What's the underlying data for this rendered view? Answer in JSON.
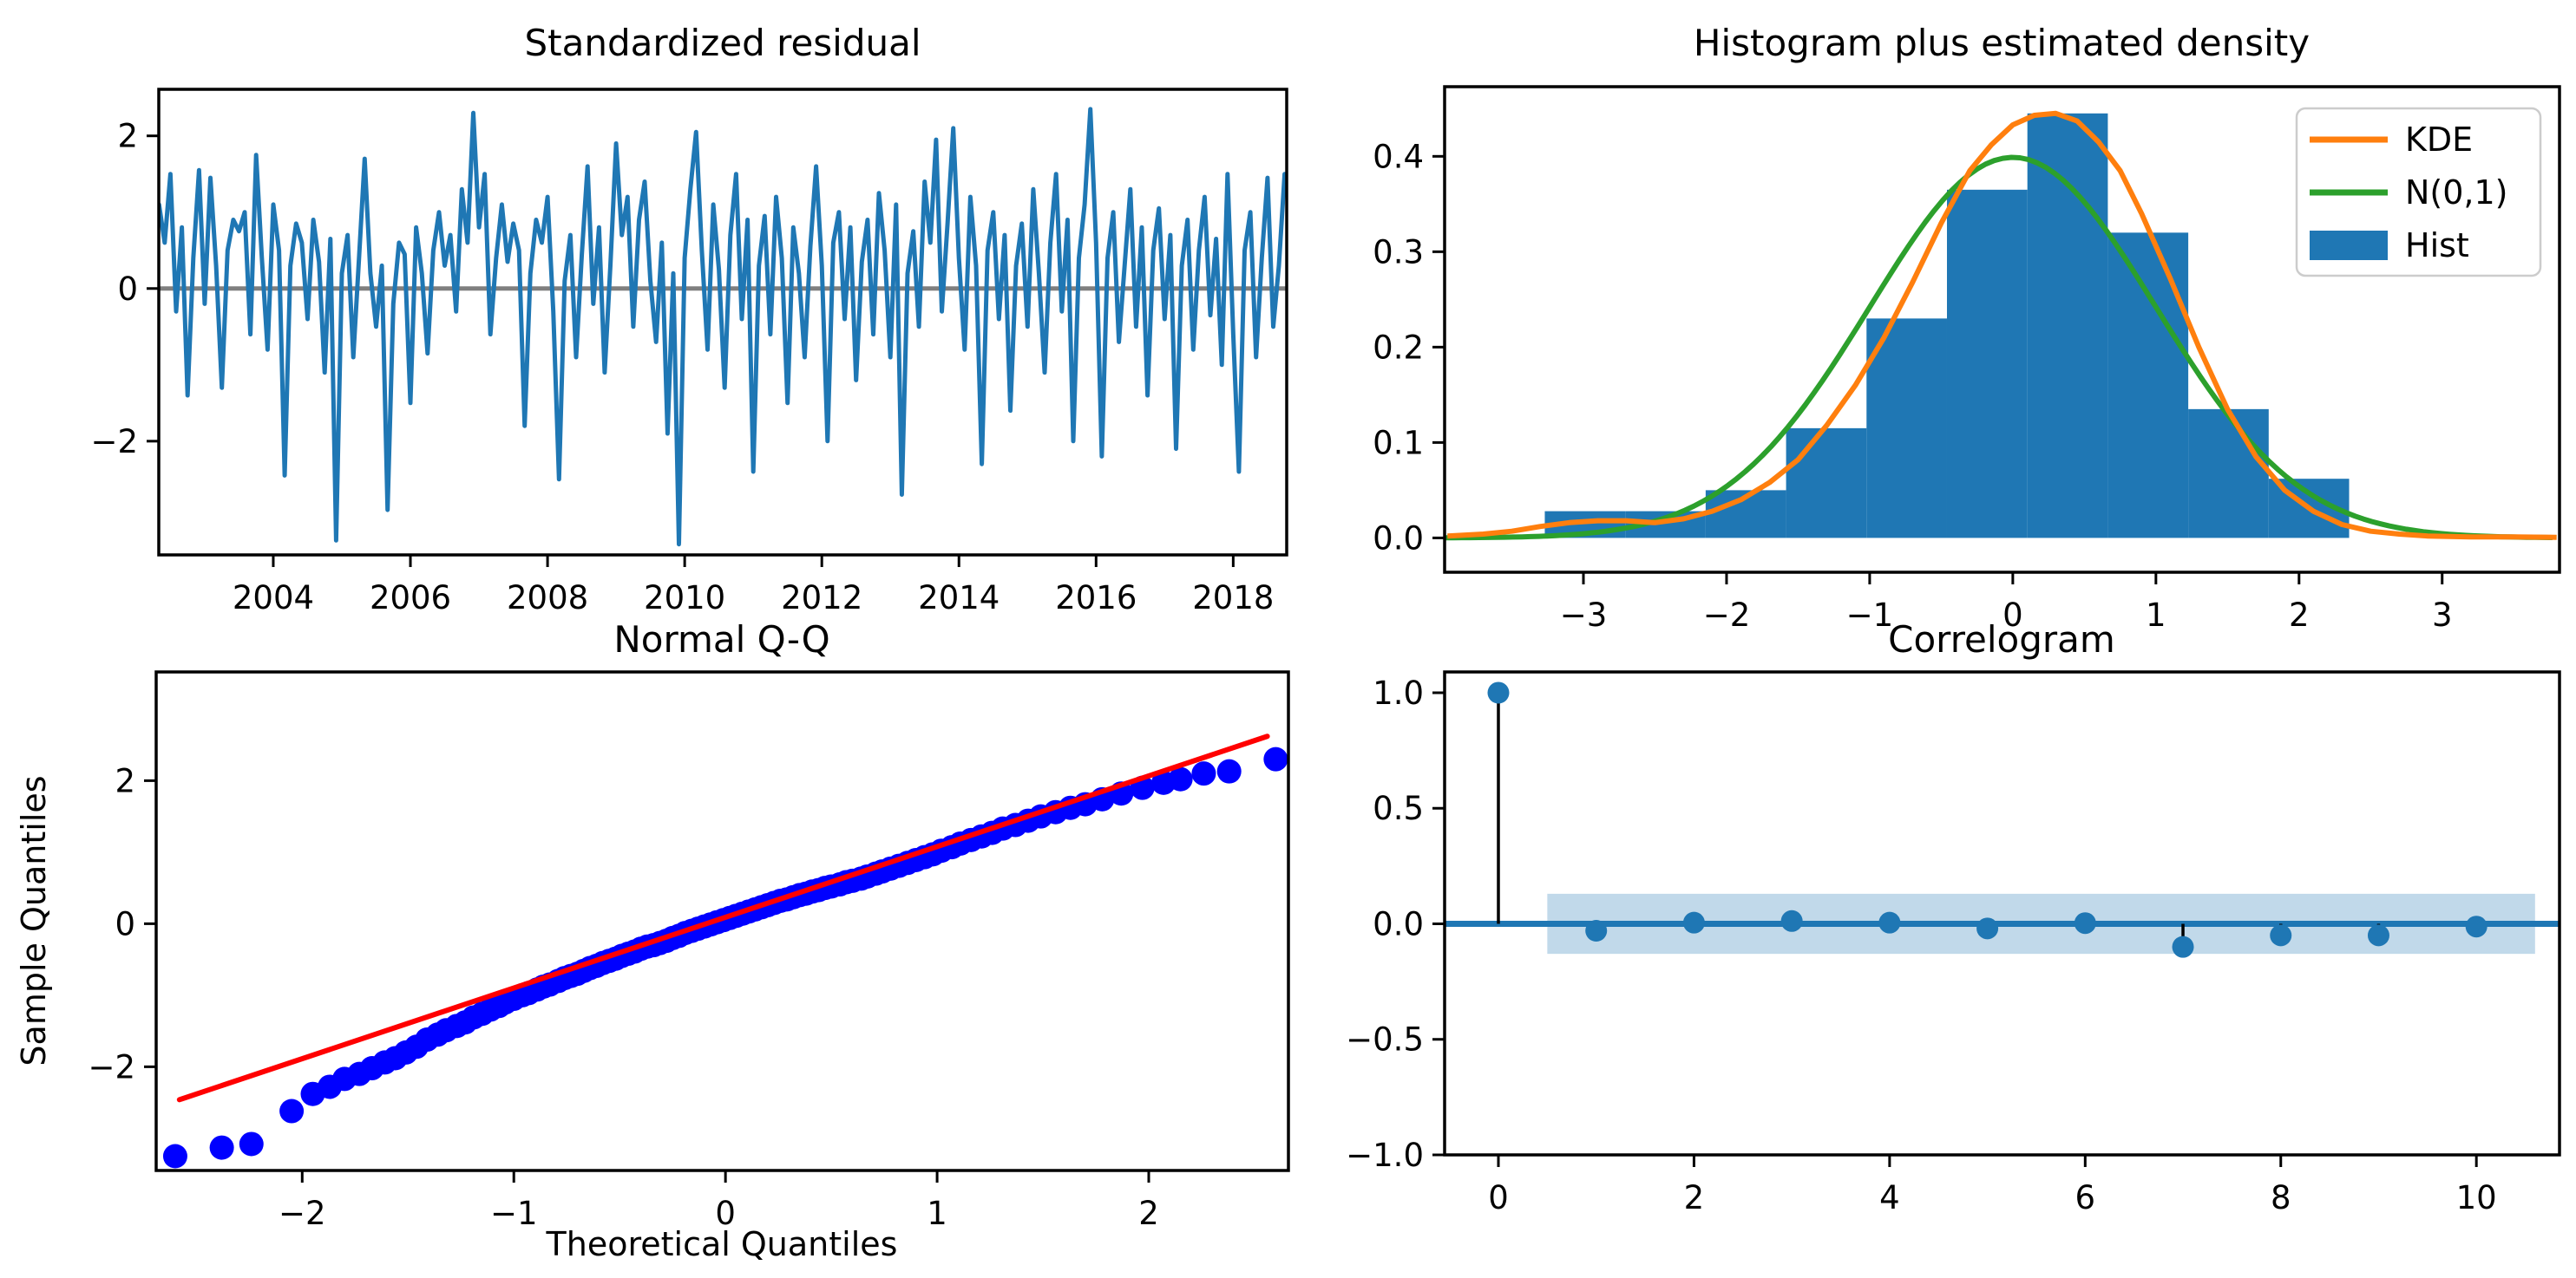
{
  "figure": {
    "background": "#ffffff",
    "description": "Model diagnostics 2x2 panel"
  },
  "chart_data": [
    {
      "id": "standardized-residual",
      "type": "line",
      "title": "Standardized residual",
      "x_start": 2002.3333,
      "x_step": 0.083333,
      "xlim": [
        2002.33,
        2018.78
      ],
      "ylim": [
        -3.49,
        2.61
      ],
      "x_ticks": [
        [
          2004,
          "2004"
        ],
        [
          2006,
          "2006"
        ],
        [
          2008,
          "2008"
        ],
        [
          2010,
          "2010"
        ],
        [
          2012,
          "2012"
        ],
        [
          2014,
          "2014"
        ],
        [
          2016,
          "2016"
        ],
        [
          2018,
          "2018"
        ]
      ],
      "y_ticks": [
        [
          -2,
          "−2"
        ],
        [
          0,
          "0"
        ],
        [
          2,
          "2"
        ]
      ],
      "line_color": "#1f77b4",
      "zero_line_color": "#7f7f7f",
      "values": [
        1.1,
        0.6,
        1.5,
        -0.3,
        0.8,
        -1.4,
        0.4,
        1.55,
        -0.2,
        1.45,
        0.3,
        -1.3,
        0.5,
        0.9,
        0.75,
        1.0,
        -0.6,
        1.75,
        0.4,
        -0.8,
        1.1,
        0.5,
        -2.45,
        0.3,
        0.85,
        0.6,
        -0.4,
        0.9,
        0.35,
        -1.1,
        0.65,
        -3.3,
        0.2,
        0.7,
        -0.9,
        0.4,
        1.7,
        0.2,
        -0.5,
        0.3,
        -2.9,
        -0.2,
        0.6,
        0.45,
        -1.5,
        0.8,
        0.2,
        -0.85,
        0.5,
        1.0,
        0.3,
        0.7,
        -0.3,
        1.3,
        0.6,
        2.3,
        0.8,
        1.5,
        -0.6,
        0.4,
        1.1,
        0.35,
        0.85,
        0.5,
        -1.8,
        0.2,
        0.9,
        0.6,
        1.2,
        -0.3,
        -2.5,
        0.1,
        0.7,
        -0.9,
        0.45,
        1.6,
        -0.2,
        0.8,
        -1.1,
        0.3,
        1.9,
        0.7,
        1.2,
        -0.5,
        0.9,
        1.4,
        0.1,
        -0.7,
        0.6,
        -1.9,
        0.2,
        -3.35,
        0.4,
        1.3,
        2.05,
        0.5,
        -0.8,
        1.1,
        0.25,
        -1.3,
        0.7,
        1.5,
        -0.4,
        0.9,
        -2.4,
        0.3,
        0.95,
        -0.6,
        1.2,
        0.4,
        -1.5,
        0.8,
        0.2,
        -0.9,
        0.55,
        1.6,
        0.3,
        -2.0,
        0.6,
        1.0,
        -0.4,
        0.8,
        -1.2,
        0.35,
        0.9,
        -0.6,
        1.25,
        0.5,
        -0.9,
        1.1,
        -2.7,
        0.2,
        0.75,
        -0.5,
        1.4,
        0.6,
        1.95,
        -0.3,
        0.85,
        2.1,
        0.4,
        -0.8,
        1.2,
        0.3,
        -2.3,
        0.5,
        1.0,
        -0.4,
        0.7,
        -1.6,
        0.3,
        0.85,
        -0.5,
        1.3,
        0.2,
        -1.1,
        0.6,
        1.5,
        -0.3,
        0.9,
        -2.0,
        0.4,
        1.1,
        2.35,
        0.6,
        -2.2,
        0.4,
        1.0,
        -0.7,
        0.3,
        1.3,
        -0.5,
        0.8,
        -1.4,
        0.5,
        1.05,
        -0.4,
        0.7,
        -2.1,
        0.3,
        0.9,
        -0.8,
        0.5,
        1.2,
        -0.35,
        0.65,
        -1.0,
        1.5,
        -0.6,
        -2.4,
        0.5,
        1.0,
        -0.9,
        0.4,
        1.45,
        -0.5,
        0.3,
        1.5
      ]
    },
    {
      "id": "histogram-density",
      "type": "histogram-density",
      "title": "Histogram plus estimated density",
      "xlim": [
        -3.97,
        3.82
      ],
      "ylim": [
        -0.036,
        0.473
      ],
      "x_ticks": [
        [
          -3,
          "−3"
        ],
        [
          -2,
          "−2"
        ],
        [
          -1,
          "−1"
        ],
        [
          0,
          "0"
        ],
        [
          1,
          "1"
        ],
        [
          2,
          "2"
        ],
        [
          3,
          "3"
        ]
      ],
      "y_ticks": [
        [
          0,
          "0.0"
        ],
        [
          0.1,
          "0.1"
        ],
        [
          0.2,
          "0.2"
        ],
        [
          0.3,
          "0.3"
        ],
        [
          0.4,
          "0.4"
        ]
      ],
      "hist": {
        "label": "Hist",
        "color": "#1f77b4",
        "bin_start": -3.27,
        "bin_width": 0.562,
        "heights": [
          0.028,
          0.028,
          0.05,
          0.115,
          0.23,
          0.365,
          0.445,
          0.32,
          0.135,
          0.062
        ]
      },
      "kde": {
        "label": "KDE",
        "color": "#ff7f0e",
        "points": [
          [
            -3.95,
            0.002
          ],
          [
            -3.7,
            0.004
          ],
          [
            -3.5,
            0.007
          ],
          [
            -3.3,
            0.012
          ],
          [
            -3.1,
            0.016
          ],
          [
            -2.9,
            0.018
          ],
          [
            -2.7,
            0.018
          ],
          [
            -2.5,
            0.016
          ],
          [
            -2.3,
            0.02
          ],
          [
            -2.1,
            0.028
          ],
          [
            -1.9,
            0.04
          ],
          [
            -1.7,
            0.058
          ],
          [
            -1.5,
            0.082
          ],
          [
            -1.3,
            0.118
          ],
          [
            -1.1,
            0.16
          ],
          [
            -0.9,
            0.21
          ],
          [
            -0.7,
            0.268
          ],
          [
            -0.5,
            0.33
          ],
          [
            -0.3,
            0.385
          ],
          [
            -0.15,
            0.412
          ],
          [
            0,
            0.433
          ],
          [
            0.15,
            0.443
          ],
          [
            0.3,
            0.445
          ],
          [
            0.45,
            0.437
          ],
          [
            0.6,
            0.415
          ],
          [
            0.75,
            0.385
          ],
          [
            0.9,
            0.34
          ],
          [
            1.1,
            0.272
          ],
          [
            1.3,
            0.2
          ],
          [
            1.5,
            0.135
          ],
          [
            1.7,
            0.085
          ],
          [
            1.9,
            0.05
          ],
          [
            2.1,
            0.028
          ],
          [
            2.3,
            0.014
          ],
          [
            2.5,
            0.007
          ],
          [
            2.7,
            0.004
          ],
          [
            2.9,
            0.002
          ],
          [
            3.2,
            0.001
          ],
          [
            3.5,
            0.001
          ],
          [
            3.8,
            0.0005
          ]
        ]
      },
      "normal": {
        "label": "N(0,1)",
        "color": "#2ca02c",
        "mean": 0,
        "sd": 1
      },
      "legend": [
        {
          "label": "KDE"
        },
        {
          "label": "N(0,1)"
        },
        {
          "label": "Hist"
        }
      ],
      "legend_position": "upper right"
    },
    {
      "id": "normal-qq",
      "type": "scatter",
      "title": "Normal Q-Q",
      "xlabel": "Theoretical Quantiles",
      "ylabel": "Sample Quantiles",
      "xlim": [
        -2.69,
        2.66
      ],
      "ylim": [
        -3.45,
        3.52
      ],
      "x_ticks": [
        [
          -2,
          "−2"
        ],
        [
          -1,
          "−1"
        ],
        [
          0,
          "0"
        ],
        [
          1,
          "1"
        ],
        [
          2,
          "2"
        ]
      ],
      "y_ticks": [
        [
          -2,
          "−2"
        ],
        [
          0,
          "0"
        ],
        [
          2,
          "2"
        ]
      ],
      "point_color": "#0000ff",
      "ref_line": {
        "color": "#ff0000",
        "x1": -2.58,
        "y1": -2.46,
        "x2": 2.56,
        "y2": 2.62
      },
      "points": [
        [
          -2.6,
          -3.25
        ],
        [
          -2.38,
          -3.13
        ],
        [
          -2.24,
          -3.08
        ],
        [
          -2.05,
          -2.62
        ],
        [
          -1.95,
          -2.38
        ],
        [
          -1.87,
          -2.28
        ],
        [
          -1.8,
          -2.17
        ],
        [
          -1.73,
          -2.1
        ],
        [
          -1.67,
          -2.02
        ],
        [
          -1.61,
          -1.94
        ],
        [
          -1.56,
          -1.88
        ],
        [
          -1.51,
          -1.8
        ],
        [
          -1.46,
          -1.72
        ],
        [
          -1.41,
          -1.62
        ],
        [
          -1.36,
          -1.55
        ],
        [
          -1.32,
          -1.49
        ],
        [
          -1.27,
          -1.43
        ],
        [
          -1.23,
          -1.38
        ],
        [
          -1.19,
          -1.31
        ],
        [
          -1.15,
          -1.26
        ],
        [
          -1.11,
          -1.2
        ],
        [
          -1.07,
          -1.15
        ],
        [
          -1.04,
          -1.1
        ],
        [
          -1.0,
          -1.05
        ],
        [
          -0.96,
          -1.0
        ],
        [
          -0.93,
          -0.97
        ],
        [
          -0.89,
          -0.92
        ],
        [
          -0.86,
          -0.88
        ],
        [
          -0.83,
          -0.85
        ],
        [
          -0.79,
          -0.8
        ],
        [
          -0.76,
          -0.76
        ],
        [
          -0.73,
          -0.73
        ],
        [
          -0.7,
          -0.7
        ],
        [
          -0.67,
          -0.66
        ],
        [
          -0.64,
          -0.62
        ],
        [
          -0.61,
          -0.59
        ],
        [
          -0.58,
          -0.55
        ],
        [
          -0.55,
          -0.52
        ],
        [
          -0.52,
          -0.49
        ],
        [
          -0.49,
          -0.45
        ],
        [
          -0.46,
          -0.42
        ],
        [
          -0.43,
          -0.39
        ],
        [
          -0.4,
          -0.35
        ],
        [
          -0.37,
          -0.32
        ],
        [
          -0.34,
          -0.3
        ],
        [
          -0.31,
          -0.27
        ],
        [
          -0.28,
          -0.24
        ],
        [
          -0.25,
          -0.2
        ],
        [
          -0.22,
          -0.17
        ],
        [
          -0.19,
          -0.13
        ],
        [
          -0.16,
          -0.1
        ],
        [
          -0.13,
          -0.07
        ],
        [
          -0.1,
          -0.04
        ],
        [
          -0.07,
          -0.01
        ],
        [
          -0.04,
          0.02
        ],
        [
          -0.01,
          0.05
        ],
        [
          0.02,
          0.08
        ],
        [
          0.05,
          0.11
        ],
        [
          0.08,
          0.14
        ],
        [
          0.11,
          0.17
        ],
        [
          0.14,
          0.2
        ],
        [
          0.17,
          0.23
        ],
        [
          0.2,
          0.26
        ],
        [
          0.23,
          0.29
        ],
        [
          0.26,
          0.32
        ],
        [
          0.29,
          0.34
        ],
        [
          0.32,
          0.37
        ],
        [
          0.35,
          0.4
        ],
        [
          0.38,
          0.42
        ],
        [
          0.41,
          0.45
        ],
        [
          0.44,
          0.47
        ],
        [
          0.47,
          0.5
        ],
        [
          0.5,
          0.52
        ],
        [
          0.54,
          0.55
        ],
        [
          0.57,
          0.58
        ],
        [
          0.6,
          0.6
        ],
        [
          0.64,
          0.63
        ],
        [
          0.67,
          0.66
        ],
        [
          0.71,
          0.7
        ],
        [
          0.74,
          0.73
        ],
        [
          0.78,
          0.77
        ],
        [
          0.82,
          0.81
        ],
        [
          0.86,
          0.85
        ],
        [
          0.9,
          0.89
        ],
        [
          0.94,
          0.93
        ],
        [
          0.98,
          0.97
        ],
        [
          1.02,
          1.02
        ],
        [
          1.07,
          1.07
        ],
        [
          1.11,
          1.12
        ],
        [
          1.16,
          1.17
        ],
        [
          1.21,
          1.22
        ],
        [
          1.26,
          1.27
        ],
        [
          1.31,
          1.33
        ],
        [
          1.37,
          1.38
        ],
        [
          1.43,
          1.44
        ],
        [
          1.49,
          1.5
        ],
        [
          1.56,
          1.56
        ],
        [
          1.63,
          1.62
        ],
        [
          1.7,
          1.67
        ],
        [
          1.78,
          1.74
        ],
        [
          1.87,
          1.82
        ],
        [
          1.97,
          1.9
        ],
        [
          2.07,
          1.97
        ],
        [
          2.15,
          2.02
        ],
        [
          2.26,
          2.1
        ],
        [
          2.38,
          2.13
        ],
        [
          2.6,
          2.3
        ]
      ]
    },
    {
      "id": "correlogram",
      "type": "stem",
      "title": "Correlogram",
      "xlim": [
        -0.55,
        10.85
      ],
      "ylim": [
        -1.0,
        1.09
      ],
      "x_ticks": [
        [
          0,
          "0"
        ],
        [
          2,
          "2"
        ],
        [
          4,
          "4"
        ],
        [
          6,
          "6"
        ],
        [
          8,
          "8"
        ],
        [
          10,
          "10"
        ]
      ],
      "y_ticks": [
        [
          -1,
          "−1.0"
        ],
        [
          -0.5,
          "−0.5"
        ],
        [
          0,
          "0.0"
        ],
        [
          0.5,
          "0.5"
        ],
        [
          1,
          "1.0"
        ]
      ],
      "marker_color": "#1f77b4",
      "stem_color": "#000000",
      "zero_line_color": "#1f77b4",
      "conf_band": {
        "low": -0.13,
        "high": 0.13,
        "x1": 0.5,
        "x2": 10.6,
        "color": "rgba(31,119,180,0.28)"
      },
      "lags": [
        0,
        1,
        2,
        3,
        4,
        5,
        6,
        7,
        8,
        9,
        10
      ],
      "values": [
        1.0,
        -0.03,
        0.005,
        0.012,
        0.005,
        -0.02,
        0.003,
        -0.1,
        -0.05,
        -0.05,
        -0.012
      ]
    }
  ]
}
